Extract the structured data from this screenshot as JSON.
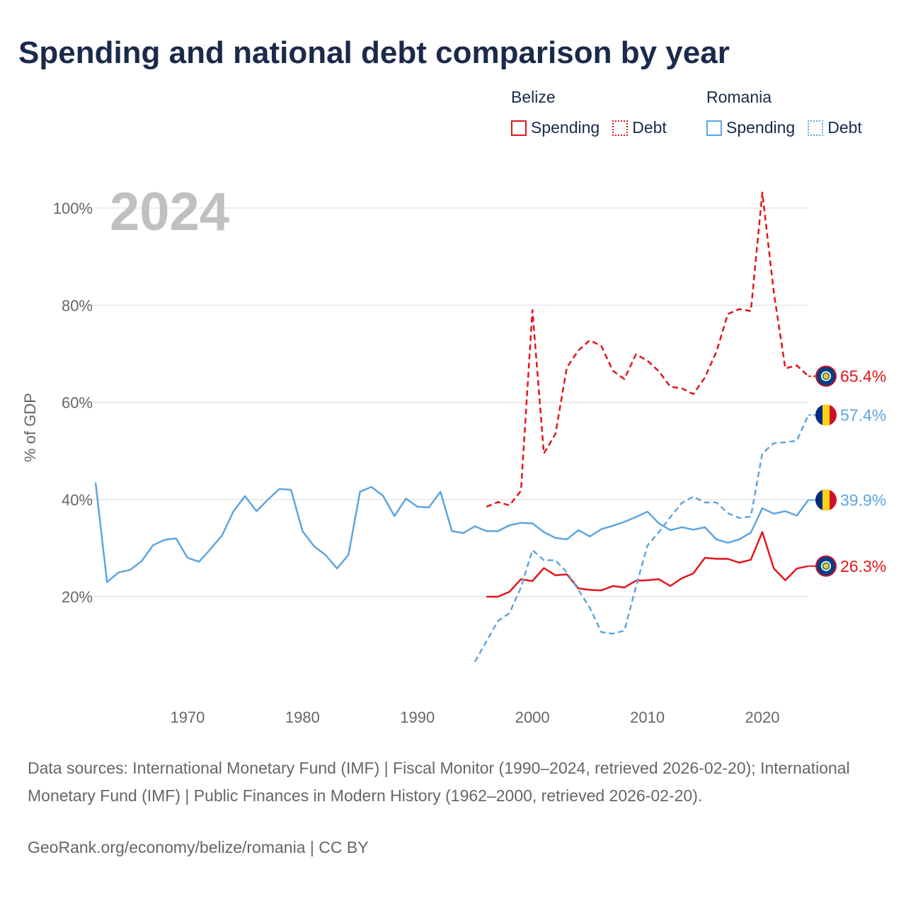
{
  "title": "Spending and national debt comparison by year",
  "legend": {
    "groups": [
      {
        "country": "Belize",
        "color": "#e3151a",
        "items": [
          {
            "label": "Spending",
            "style": "solid"
          },
          {
            "label": "Debt",
            "style": "dotted"
          }
        ]
      },
      {
        "country": "Romania",
        "color": "#5ea5e0",
        "items": [
          {
            "label": "Spending",
            "style": "solid"
          },
          {
            "label": "Debt",
            "style": "dotted"
          }
        ]
      }
    ]
  },
  "chart_data": {
    "type": "line",
    "year_label": "2024",
    "ylabel": "% of GDP",
    "xlim": [
      1962,
      2024
    ],
    "ylim": [
      0,
      105
    ],
    "x_ticks": [
      1970,
      1980,
      1990,
      2000,
      2010,
      2020
    ],
    "y_ticks": [
      20,
      40,
      60,
      80,
      100
    ],
    "y_tick_labels": [
      "20%",
      "40%",
      "60%",
      "80%",
      "100%"
    ],
    "grid": true,
    "series": [
      {
        "name": "Belize Spending",
        "country": "Belize",
        "flag": "belize",
        "color": "#e3151a",
        "dash": "solid",
        "end_label": "26.3%",
        "points": [
          [
            1996,
            20.0
          ],
          [
            1997,
            20.0
          ],
          [
            1998,
            21.0
          ],
          [
            1999,
            23.6
          ],
          [
            2000,
            23.2
          ],
          [
            2001,
            25.9
          ],
          [
            2002,
            24.4
          ],
          [
            2003,
            24.6
          ],
          [
            2004,
            21.7
          ],
          [
            2005,
            21.4
          ],
          [
            2006,
            21.3
          ],
          [
            2007,
            22.2
          ],
          [
            2008,
            21.9
          ],
          [
            2009,
            23.3
          ],
          [
            2010,
            23.4
          ],
          [
            2011,
            23.6
          ],
          [
            2012,
            22.2
          ],
          [
            2013,
            23.8
          ],
          [
            2014,
            24.8
          ],
          [
            2015,
            28.0
          ],
          [
            2016,
            27.8
          ],
          [
            2017,
            27.8
          ],
          [
            2018,
            27.0
          ],
          [
            2019,
            27.6
          ],
          [
            2020,
            33.3
          ],
          [
            2021,
            25.8
          ],
          [
            2022,
            23.4
          ],
          [
            2023,
            25.8
          ],
          [
            2024,
            26.3
          ]
        ]
      },
      {
        "name": "Belize Debt",
        "country": "Belize",
        "flag": "belize",
        "color": "#e3151a",
        "dash": "dashed",
        "end_label": "65.4%",
        "points": [
          [
            1996,
            38.5
          ],
          [
            1997,
            39.5
          ],
          [
            1998,
            38.8
          ],
          [
            1999,
            41.8
          ],
          [
            2000,
            79.0
          ],
          [
            2001,
            49.5
          ],
          [
            2002,
            53.5
          ],
          [
            2003,
            67.2
          ],
          [
            2004,
            70.7
          ],
          [
            2005,
            72.8
          ],
          [
            2006,
            71.6
          ],
          [
            2007,
            66.5
          ],
          [
            2008,
            64.8
          ],
          [
            2009,
            69.9
          ],
          [
            2010,
            68.6
          ],
          [
            2011,
            66.4
          ],
          [
            2012,
            63.2
          ],
          [
            2013,
            62.9
          ],
          [
            2014,
            61.7
          ],
          [
            2015,
            65.1
          ],
          [
            2016,
            70.4
          ],
          [
            2017,
            78.2
          ],
          [
            2018,
            79.2
          ],
          [
            2019,
            78.8
          ],
          [
            2020,
            103.2
          ],
          [
            2021,
            82.6
          ],
          [
            2022,
            67.0
          ],
          [
            2023,
            67.6
          ],
          [
            2024,
            65.4
          ]
        ]
      },
      {
        "name": "Romania Spending",
        "country": "Romania",
        "flag": "romania",
        "color": "#5ea5e0",
        "dash": "solid",
        "end_label": "39.9%",
        "points": [
          [
            1962,
            43.5
          ],
          [
            1963,
            23.0
          ],
          [
            1964,
            25.0
          ],
          [
            1965,
            25.5
          ],
          [
            1966,
            27.3
          ],
          [
            1967,
            30.6
          ],
          [
            1968,
            31.7
          ],
          [
            1969,
            32.0
          ],
          [
            1970,
            28.0
          ],
          [
            1971,
            27.2
          ],
          [
            1972,
            29.8
          ],
          [
            1973,
            32.6
          ],
          [
            1974,
            37.6
          ],
          [
            1975,
            40.7
          ],
          [
            1976,
            37.6
          ],
          [
            1977,
            40.0
          ],
          [
            1978,
            42.2
          ],
          [
            1979,
            42.0
          ],
          [
            1980,
            33.5
          ],
          [
            1981,
            30.4
          ],
          [
            1982,
            28.6
          ],
          [
            1983,
            25.8
          ],
          [
            1984,
            28.6
          ],
          [
            1985,
            41.6
          ],
          [
            1986,
            42.6
          ],
          [
            1987,
            40.8
          ],
          [
            1988,
            36.6
          ],
          [
            1989,
            40.2
          ],
          [
            1990,
            38.5
          ],
          [
            1991,
            38.4
          ],
          [
            1992,
            41.6
          ],
          [
            1993,
            33.5
          ],
          [
            1994,
            33.1
          ],
          [
            1995,
            34.5
          ],
          [
            1996,
            33.5
          ],
          [
            1997,
            33.5
          ],
          [
            1998,
            34.7
          ],
          [
            1999,
            35.2
          ],
          [
            2000,
            35.1
          ],
          [
            2001,
            33.3
          ],
          [
            2002,
            32.1
          ],
          [
            2003,
            31.8
          ],
          [
            2004,
            33.7
          ],
          [
            2005,
            32.4
          ],
          [
            2006,
            33.9
          ],
          [
            2007,
            34.6
          ],
          [
            2008,
            35.4
          ],
          [
            2009,
            36.4
          ],
          [
            2010,
            37.5
          ],
          [
            2011,
            35.1
          ],
          [
            2012,
            33.7
          ],
          [
            2013,
            34.3
          ],
          [
            2014,
            33.8
          ],
          [
            2015,
            34.3
          ],
          [
            2016,
            31.8
          ],
          [
            2017,
            31.1
          ],
          [
            2018,
            31.8
          ],
          [
            2019,
            33.2
          ],
          [
            2020,
            38.2
          ],
          [
            2021,
            37.1
          ],
          [
            2022,
            37.6
          ],
          [
            2023,
            36.7
          ],
          [
            2024,
            39.9
          ]
        ]
      },
      {
        "name": "Romania Debt",
        "country": "Romania",
        "flag": "romania",
        "color": "#5ea5e0",
        "dash": "dashed",
        "end_label": "57.4%",
        "points": [
          [
            1995,
            6.6
          ],
          [
            1996,
            10.8
          ],
          [
            1997,
            15.0
          ],
          [
            1998,
            16.6
          ],
          [
            1999,
            21.9
          ],
          [
            2000,
            29.6
          ],
          [
            2001,
            27.5
          ],
          [
            2002,
            27.5
          ],
          [
            2003,
            25.0
          ],
          [
            2004,
            21.4
          ],
          [
            2005,
            17.7
          ],
          [
            2006,
            12.7
          ],
          [
            2007,
            12.4
          ],
          [
            2008,
            13.0
          ],
          [
            2009,
            22.0
          ],
          [
            2010,
            30.5
          ],
          [
            2011,
            33.3
          ],
          [
            2012,
            36.4
          ],
          [
            2013,
            39.3
          ],
          [
            2014,
            40.6
          ],
          [
            2015,
            39.4
          ],
          [
            2016,
            39.4
          ],
          [
            2017,
            37.2
          ],
          [
            2018,
            36.2
          ],
          [
            2019,
            36.5
          ],
          [
            2020,
            49.5
          ],
          [
            2021,
            51.6
          ],
          [
            2022,
            51.8
          ],
          [
            2023,
            52.1
          ],
          [
            2024,
            57.4
          ]
        ]
      }
    ]
  },
  "footer": {
    "sources": "Data sources: International Monetary Fund (IMF) | Fiscal Monitor (1990–2024, retrieved 2026-02-20); International Monetary Fund (IMF) | Public Finances in Modern History (1962–2000, retrieved 2026-02-20).",
    "credit": "GeoRank.org/economy/belize/romania | CC BY"
  }
}
